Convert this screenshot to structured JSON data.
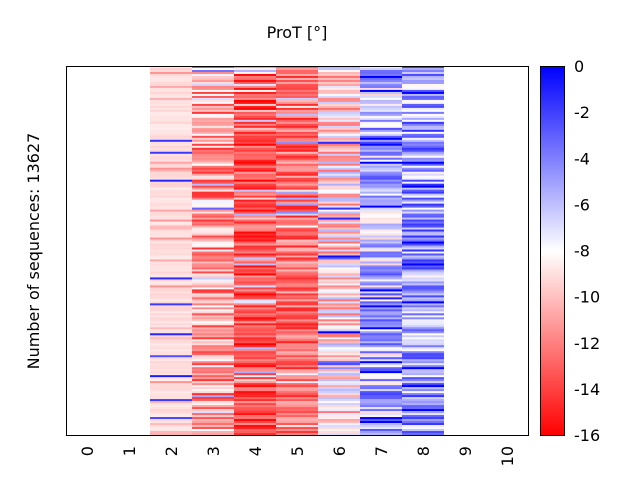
{
  "chart_data": {
    "type": "heatmap",
    "title": "ProT [°]",
    "xlabel": "",
    "ylabel": "Number of sequences: 13627",
    "x_ticks": [
      "0",
      "1",
      "2",
      "3",
      "4",
      "5",
      "6",
      "7",
      "8",
      "9",
      "10"
    ],
    "x_range": [
      0,
      10
    ],
    "num_rows": 13627,
    "columns_with_data": [
      2,
      3,
      4,
      5,
      6,
      7,
      8
    ],
    "column_value_summary": [
      {
        "position": 2,
        "typical": -9.0,
        "spread": "mostly -9 with scattered -1 (blue) outliers"
      },
      {
        "position": 3,
        "typical": -11.0,
        "spread": "mixed -14 to -5"
      },
      {
        "position": 4,
        "typical": -13.5,
        "spread": "mostly strong red -16 to -10"
      },
      {
        "position": 5,
        "typical": -12.5,
        "spread": "red -15 to -6"
      },
      {
        "position": 6,
        "typical": -9.0,
        "spread": "mixed -13 to -3"
      },
      {
        "position": 7,
        "typical": -6.0,
        "spread": "light blue -9 to -2"
      },
      {
        "position": 8,
        "typical": -5.0,
        "spread": "blue -11 to -1"
      }
    ],
    "colorbar": {
      "min": -16,
      "max": 0,
      "center": -8,
      "ticks": [
        "0",
        "-2",
        "-4",
        "-6",
        "-8",
        "-10",
        "-12",
        "-14",
        "-16"
      ],
      "colormap": "bwr",
      "low_color": "#ff0000",
      "mid_color": "#ffffff",
      "high_color": "#0000ff",
      "position": "right"
    },
    "grid": false
  }
}
